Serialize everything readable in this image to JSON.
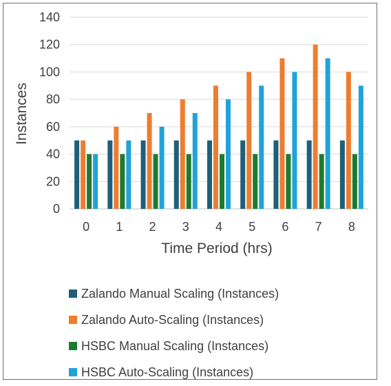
{
  "chart_data": {
    "type": "bar",
    "title": "",
    "xlabel": "Time Period (hrs)",
    "ylabel": "Instances",
    "categories": [
      "0",
      "1",
      "2",
      "3",
      "4",
      "5",
      "6",
      "7",
      "8"
    ],
    "ylim": [
      0,
      140
    ],
    "yticks": [
      "0",
      "20",
      "40",
      "60",
      "80",
      "100",
      "120",
      "140"
    ],
    "grid": true,
    "legend": "bottom",
    "series": [
      {
        "name": "Zalando Manual Scaling (Instances)",
        "color": "#1f5f7a",
        "values": [
          50,
          50,
          50,
          50,
          50,
          50,
          50,
          50,
          50
        ]
      },
      {
        "name": "Zalando Auto-Scaling (Instances)",
        "color": "#ed7d31",
        "values": [
          50,
          60,
          70,
          80,
          90,
          100,
          110,
          120,
          100
        ]
      },
      {
        "name": "HSBC Manual Scaling (Instances)",
        "color": "#1e7a2e",
        "values": [
          40,
          40,
          40,
          40,
          40,
          40,
          40,
          40,
          40
        ]
      },
      {
        "name": "HSBC Auto-Scaling (Instances)",
        "color": "#1fa3d9",
        "values": [
          40,
          50,
          60,
          70,
          80,
          90,
          100,
          110,
          90
        ]
      }
    ]
  }
}
